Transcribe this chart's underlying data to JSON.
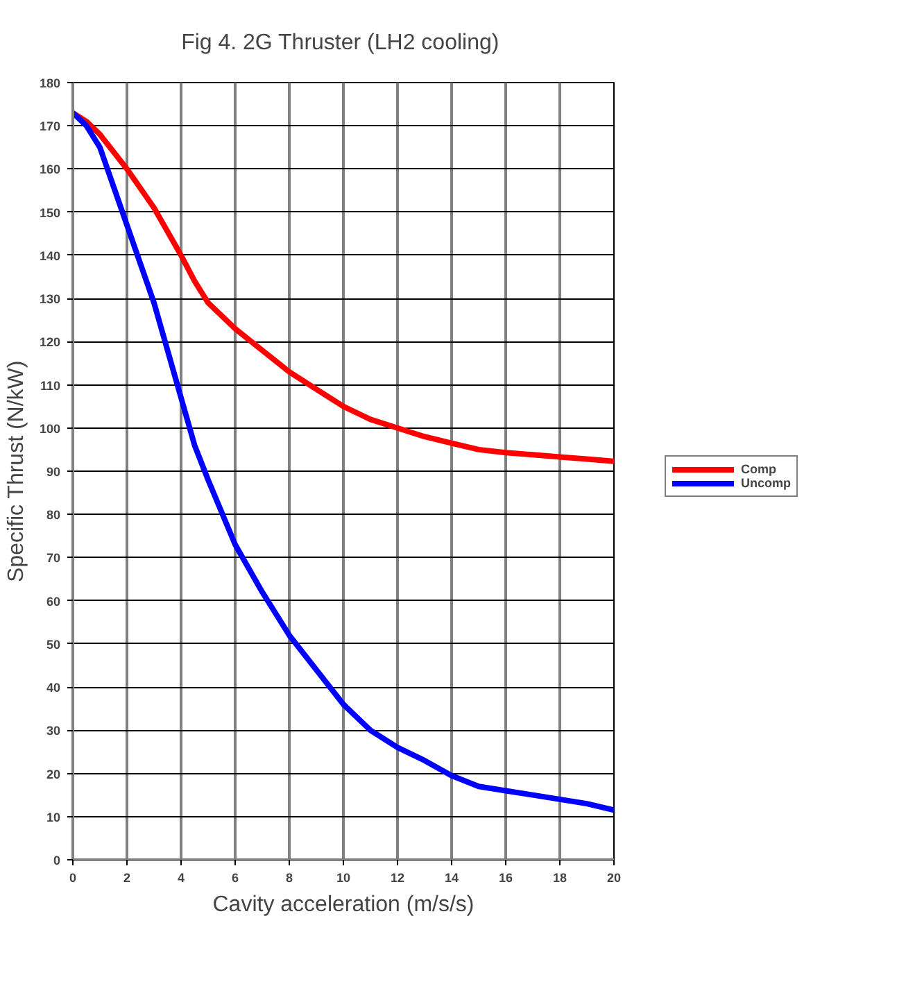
{
  "chart_data": {
    "type": "line",
    "title": "Fig 4. 2G Thruster  (LH2 cooling)",
    "xlabel": "Cavity acceleration (m/s/s)",
    "ylabel": "Specific Thrust (N/kW)",
    "xlim": [
      0,
      20
    ],
    "xticks": [
      0,
      2,
      4,
      6,
      8,
      10,
      12,
      14,
      16,
      18,
      20
    ],
    "ylim": [
      0,
      180
    ],
    "yticks": [
      0,
      10,
      20,
      30,
      40,
      50,
      60,
      70,
      80,
      90,
      100,
      110,
      120,
      130,
      140,
      150,
      160,
      170,
      180
    ],
    "grid": true,
    "legend": "right",
    "marker": "none",
    "line_style": "solid",
    "series": [
      {
        "name": "Comp",
        "color": "#ff0000",
        "x": [
          0,
          0.5,
          1,
          2,
          3,
          4,
          4.5,
          5,
          6,
          7,
          8,
          9,
          10,
          11,
          12,
          13,
          14,
          15,
          16,
          17,
          18,
          19,
          20
        ],
        "values": [
          173,
          171,
          168,
          160,
          151,
          140,
          134,
          129,
          123,
          118,
          113,
          109,
          105,
          102,
          100,
          98,
          96.5,
          95,
          94.3,
          93.8,
          93.3,
          92.8,
          92.3
        ]
      },
      {
        "name": "Uncomp",
        "color": "#0000ff",
        "x": [
          0,
          0.5,
          1,
          2,
          3,
          3.5,
          4,
          4.5,
          5,
          6,
          7,
          8,
          9,
          10,
          11,
          12,
          13,
          14,
          15,
          16,
          17,
          18,
          19,
          20
        ],
        "values": [
          173,
          170,
          165,
          147,
          129,
          118,
          107,
          96,
          88,
          73,
          62,
          52,
          44,
          36,
          30,
          26,
          23,
          19.5,
          17,
          16,
          15,
          14,
          13,
          11.5
        ]
      }
    ]
  }
}
